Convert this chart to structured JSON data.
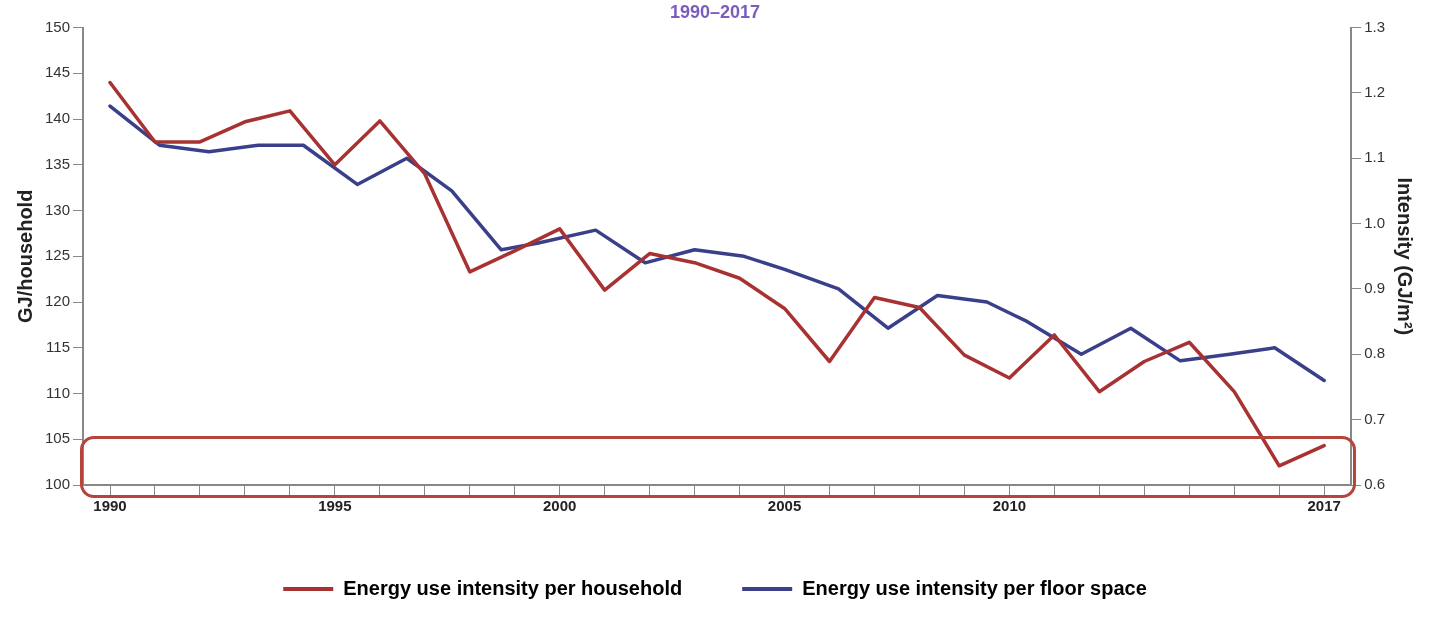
{
  "chart_data": {
    "type": "line",
    "title": "1990–2017",
    "ylabel": "GJ/household",
    "y2label": "Intensity (GJ/m²)",
    "xlim": [
      1989.4,
      2017.6
    ],
    "xticks": [
      1990,
      {
        "value": 1991,
        "label": null
      },
      {
        "value": 1992,
        "label": null
      },
      {
        "value": 1993,
        "label": null
      },
      {
        "value": 1994,
        "label": null
      },
      1995,
      {
        "value": 1996,
        "label": null
      },
      {
        "value": 1997,
        "label": null
      },
      {
        "value": 1998,
        "label": null
      },
      {
        "value": 1999,
        "label": null
      },
      2000,
      {
        "value": 2001,
        "label": null
      },
      {
        "value": 2002,
        "label": null
      },
      {
        "value": 2003,
        "label": null
      },
      {
        "value": 2004,
        "label": null
      },
      2005,
      {
        "value": 2006,
        "label": null
      },
      {
        "value": 2007,
        "label": null
      },
      {
        "value": 2008,
        "label": null
      },
      {
        "value": 2009,
        "label": null
      },
      2010,
      {
        "value": 2011,
        "label": null
      },
      {
        "value": 2012,
        "label": null
      },
      {
        "value": 2013,
        "label": null
      },
      {
        "value": 2014,
        "label": null
      },
      {
        "value": 2015,
        "label": null
      },
      {
        "value": 2016,
        "label": null
      },
      2017
    ],
    "ylim": [
      100,
      150
    ],
    "yticks": [
      100,
      105,
      110,
      115,
      120,
      125,
      130,
      135,
      140,
      145,
      150
    ],
    "y2lim": [
      0.6,
      1.3
    ],
    "y2ticks": [
      0.6,
      0.7,
      0.8,
      0.9,
      {
        "value": 1,
        "label": "1.0"
      },
      1.1,
      1.2,
      1.3
    ],
    "grid": false,
    "legend": "bottom",
    "marker": "none",
    "line_style": "solid",
    "series": [
      {
        "name": "Energy use intensity per household",
        "color": "#a83232",
        "x": [
          1990,
          1991,
          1992,
          1993,
          1994,
          1995,
          1996,
          1997,
          1998,
          1999,
          2000,
          2001,
          2002,
          2003,
          2004,
          2005,
          2006,
          2007,
          2008,
          2009,
          2010,
          2011,
          2012,
          2013,
          2014,
          2015,
          2016,
          2017
        ],
        "values": [
          144,
          137.5,
          137.5,
          139.7,
          140.9,
          135,
          139.8,
          134,
          123.3,
          125.6,
          128,
          121.3,
          125.3,
          124.3,
          122.6,
          119.3,
          113.5,
          120.5,
          119.4,
          114.2,
          111.7,
          116.4,
          110.2,
          113.5,
          115.6,
          110.2,
          102.1,
          104.3
        ]
      },
      {
        "name": "Energy use intensity per floor space",
        "color": "#3a3f8a",
        "axis": "y2",
        "x": [
          1990,
          1991.1,
          1992.2,
          1993.3,
          1994.3,
          1995.5,
          1996.6,
          1997.6,
          1998.7,
          1999.5,
          2000.8,
          2001.9,
          2003,
          2004.1,
          2005,
          2006.2,
          2007.3,
          2008.4,
          2009.5,
          2010.4,
          2011.6,
          2012.7,
          2013.8,
          2014.9,
          2015.9,
          2017
        ],
        "values": [
          1.18,
          1.12,
          1.11,
          1.12,
          1.12,
          1.06,
          1.1,
          1.05,
          0.96,
          0.97,
          0.99,
          0.94,
          0.96,
          0.95,
          0.93,
          0.9,
          0.84,
          0.89,
          0.88,
          0.85,
          0.8,
          0.84,
          0.79,
          0.8,
          0.81,
          0.76
        ]
      }
    ]
  }
}
